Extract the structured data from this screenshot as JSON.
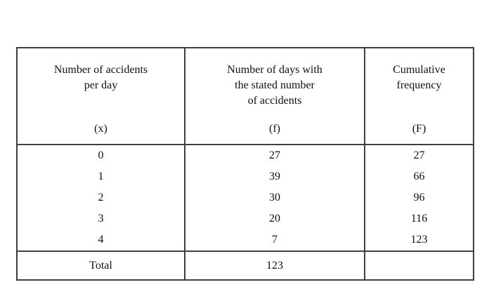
{
  "colors": {
    "background": "#ffffff",
    "border": "#3f3f3f",
    "text": "#101010"
  },
  "table": {
    "headers": [
      {
        "lines": [
          "Number of accidents",
          "per day"
        ],
        "symbol": "(x)"
      },
      {
        "lines": [
          "Number of days with",
          "the stated number",
          "of accidents"
        ],
        "symbol": "(f)"
      },
      {
        "lines": [
          "Cumulative",
          "frequency"
        ],
        "symbol": "(F)"
      }
    ]
  },
  "chart_data": {
    "type": "table",
    "title": "",
    "columns": [
      "Number of accidents per day (x)",
      "Number of days with the stated number of accidents (f)",
      "Cumulative frequency (F)"
    ],
    "rows": [
      [
        "0",
        "27",
        "27"
      ],
      [
        "1",
        "39",
        "66"
      ],
      [
        "2",
        "30",
        "96"
      ],
      [
        "3",
        "20",
        "116"
      ],
      [
        "4",
        "7",
        "123"
      ]
    ],
    "total_row": [
      "Total",
      "123",
      ""
    ]
  }
}
